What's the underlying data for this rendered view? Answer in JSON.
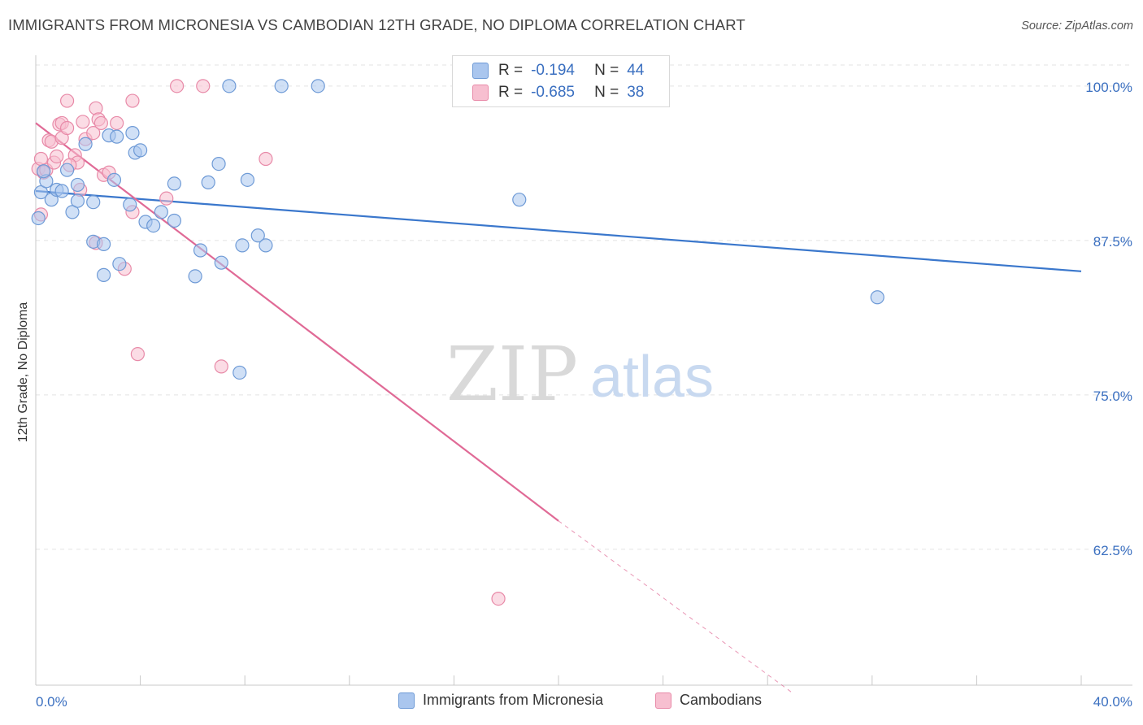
{
  "title": "IMMIGRANTS FROM MICRONESIA VS CAMBODIAN 12TH GRADE, NO DIPLOMA CORRELATION CHART",
  "source": "Source: ZipAtlas.com",
  "watermark": {
    "zip": "ZIP",
    "atlas": "atlas"
  },
  "legend": {
    "r_label": "R =",
    "n_label": "N =",
    "micronesia": {
      "r": "-0.194",
      "n": "44"
    },
    "cambodians": {
      "r": "-0.685",
      "n": "38"
    }
  },
  "colors": {
    "blue_fill": "#aac6ee",
    "blue_stroke": "#6e9ad6",
    "blue_line": "#3a77cc",
    "pink_fill": "#f7bfd0",
    "pink_stroke": "#e88aa8",
    "pink_line": "#e06a96",
    "tick_text": "#3a6fc0"
  },
  "chart_data": {
    "type": "scatter",
    "title": "IMMIGRANTS FROM MICRONESIA VS CAMBODIAN 12TH GRADE, NO DIPLOMA CORRELATION CHART",
    "xlabel": "",
    "ylabel": "12th Grade, No Diploma",
    "xlim": [
      0,
      40
    ],
    "ylim": [
      51.5,
      101.7
    ],
    "x_tick_labels": [
      "0.0%",
      "40.0%"
    ],
    "y_ticks": [
      62.5,
      75.0,
      87.5,
      100.0
    ],
    "y_tick_labels": [
      "62.5%",
      "75.0%",
      "87.5%",
      "100.0%"
    ],
    "series": [
      {
        "name": "Immigrants from Micronesia",
        "color": "blue",
        "points": [
          [
            0.1,
            89.3
          ],
          [
            0.2,
            91.4
          ],
          [
            0.4,
            92.3
          ],
          [
            0.6,
            90.8
          ],
          [
            0.8,
            91.6
          ],
          [
            1.0,
            91.5
          ],
          [
            1.2,
            93.2
          ],
          [
            1.4,
            89.8
          ],
          [
            1.6,
            90.7
          ],
          [
            1.6,
            92.0
          ],
          [
            1.9,
            95.3
          ],
          [
            2.2,
            90.6
          ],
          [
            2.2,
            87.4
          ],
          [
            2.6,
            87.2
          ],
          [
            2.6,
            84.7
          ],
          [
            2.8,
            96.0
          ],
          [
            3.0,
            92.4
          ],
          [
            3.1,
            95.9
          ],
          [
            3.2,
            85.6
          ],
          [
            3.6,
            90.4
          ],
          [
            3.7,
            96.2
          ],
          [
            3.8,
            94.6
          ],
          [
            4.0,
            94.8
          ],
          [
            4.2,
            89.0
          ],
          [
            4.5,
            88.7
          ],
          [
            4.8,
            89.8
          ],
          [
            5.3,
            89.1
          ],
          [
            5.3,
            92.1
          ],
          [
            6.1,
            84.6
          ],
          [
            6.3,
            86.7
          ],
          [
            6.6,
            92.2
          ],
          [
            7.0,
            93.7
          ],
          [
            7.1,
            85.7
          ],
          [
            7.4,
            100.0
          ],
          [
            7.8,
            76.8
          ],
          [
            7.9,
            87.1
          ],
          [
            8.1,
            92.4
          ],
          [
            8.5,
            87.9
          ],
          [
            8.8,
            87.1
          ],
          [
            9.4,
            100.0
          ],
          [
            10.8,
            100.0
          ],
          [
            18.5,
            90.8
          ],
          [
            32.2,
            82.9
          ],
          [
            0.3,
            93.1
          ]
        ]
      },
      {
        "name": "Cambodians",
        "color": "pink",
        "points": [
          [
            0.1,
            93.3
          ],
          [
            0.2,
            94.1
          ],
          [
            0.3,
            93.0
          ],
          [
            0.4,
            93.2
          ],
          [
            0.5,
            95.6
          ],
          [
            0.6,
            95.5
          ],
          [
            0.7,
            93.8
          ],
          [
            0.8,
            94.3
          ],
          [
            0.9,
            96.9
          ],
          [
            1.0,
            95.8
          ],
          [
            1.0,
            97.0
          ],
          [
            1.2,
            96.6
          ],
          [
            1.2,
            98.8
          ],
          [
            1.5,
            94.4
          ],
          [
            1.6,
            93.8
          ],
          [
            1.7,
            91.6
          ],
          [
            1.8,
            97.1
          ],
          [
            1.9,
            95.7
          ],
          [
            2.2,
            96.2
          ],
          [
            2.3,
            98.2
          ],
          [
            2.3,
            87.3
          ],
          [
            2.4,
            97.3
          ],
          [
            2.5,
            97.0
          ],
          [
            2.6,
            92.8
          ],
          [
            2.8,
            93.0
          ],
          [
            3.1,
            97.0
          ],
          [
            3.4,
            85.2
          ],
          [
            3.7,
            89.8
          ],
          [
            3.7,
            98.8
          ],
          [
            3.9,
            78.3
          ],
          [
            5.0,
            90.9
          ],
          [
            5.4,
            100.0
          ],
          [
            6.4,
            100.0
          ],
          [
            7.1,
            77.3
          ],
          [
            8.8,
            94.1
          ],
          [
            17.7,
            58.5
          ],
          [
            0.2,
            89.6
          ],
          [
            1.3,
            93.6
          ]
        ]
      }
    ],
    "trendlines": [
      {
        "series": "Immigrants from Micronesia",
        "x": [
          0,
          40
        ],
        "y": [
          91.5,
          85.0
        ]
      },
      {
        "series": "Cambodians",
        "x": [
          0,
          20
        ],
        "y": [
          97.0,
          64.8
        ],
        "dashed_extension": {
          "x": [
            20,
            29
          ],
          "y": [
            64.8,
            50.8
          ]
        }
      }
    ]
  }
}
